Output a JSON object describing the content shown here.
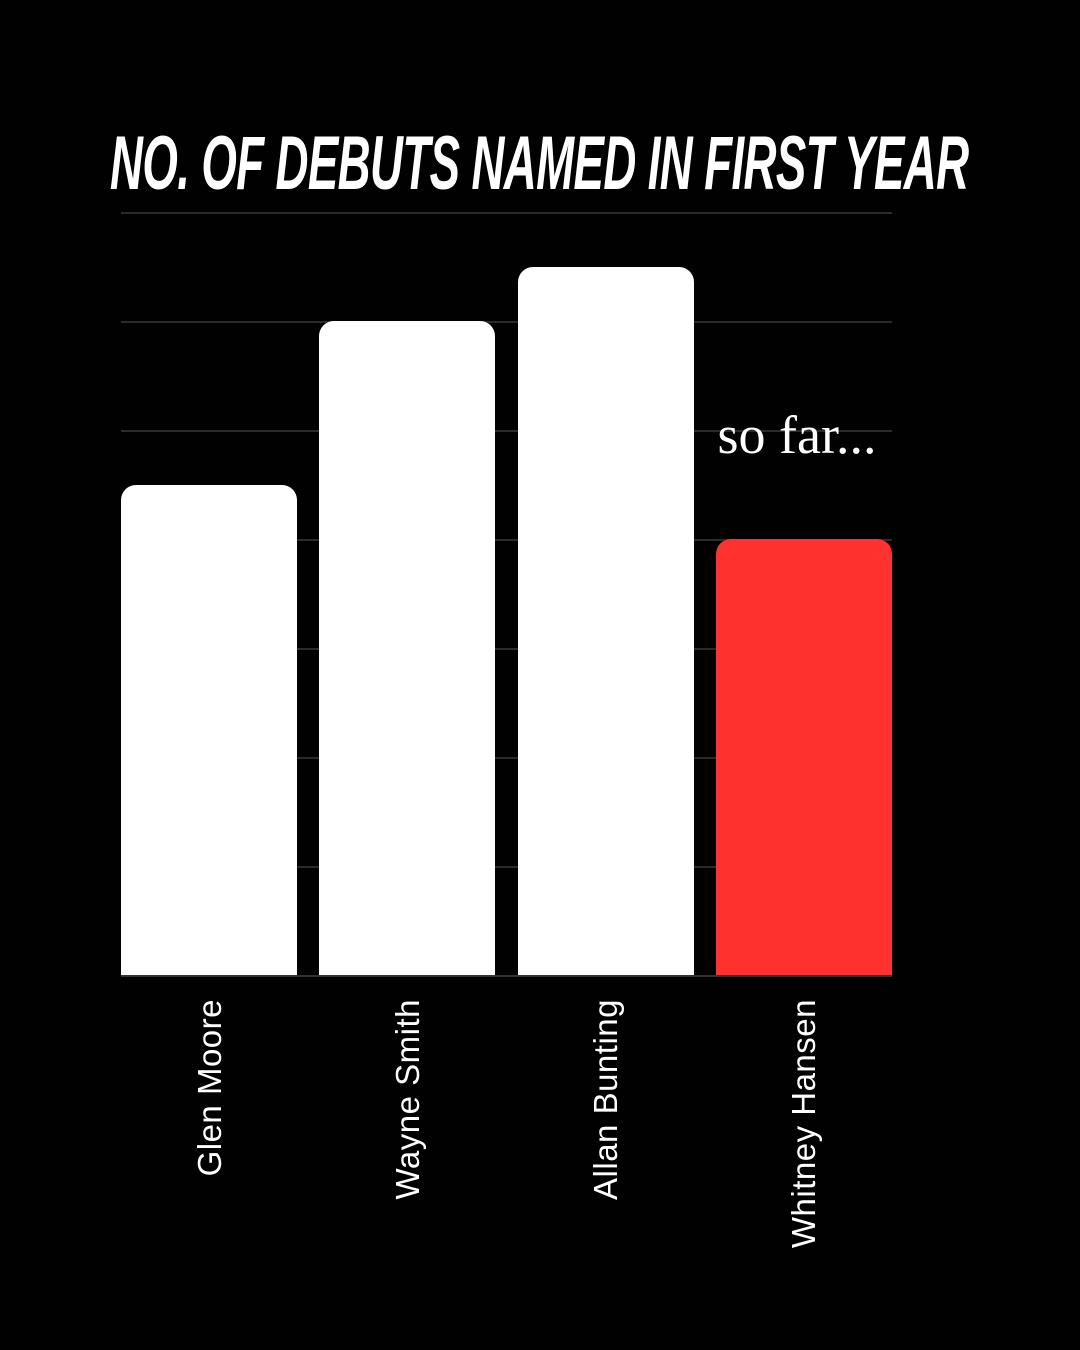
{
  "page": {
    "background": "#010101"
  },
  "title": {
    "text": "NO. OF DEBUTS NAMED IN FIRST YEAR",
    "color": "#FFFFFF"
  },
  "annotation": {
    "text": "so far...",
    "color": "#FFFFFF"
  },
  "chart_data": {
    "type": "bar",
    "title": "NO. OF DEBUTS NAMED IN FIRST YEAR",
    "categories": [
      "Glen Moore",
      "Wayne Smith",
      "Allan Bunting",
      "Whitney Hansen"
    ],
    "values": [
      9,
      12,
      13,
      8
    ],
    "bar_colors": [
      "#FFFFFF",
      "#FFFFFF",
      "#FFFFFF",
      "#FF3230"
    ],
    "highlighted_category": "Whitney Hansen",
    "highlight_color": "#FF3230",
    "annotation": {
      "text": "so far...",
      "target": "Whitney Hansen"
    },
    "xlabel": "",
    "ylabel": "",
    "ylim": [
      0,
      14
    ],
    "gridline_interval": 2,
    "gridline_color": "#2B2B2B",
    "grid": "horizontal",
    "legend": "none",
    "x_label_rotation": -90,
    "background": "#010101"
  }
}
